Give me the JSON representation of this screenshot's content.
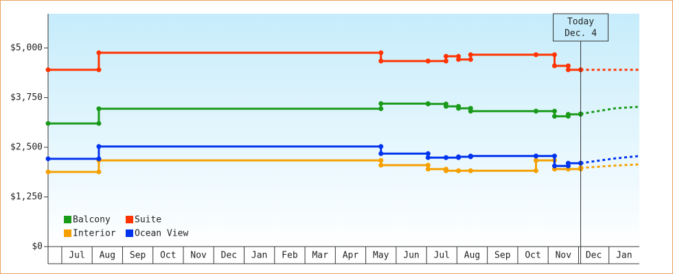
{
  "chart_data": {
    "type": "step-line",
    "ylim": [
      0,
      5862
    ],
    "yticks": [
      {
        "value": 0,
        "label": "$0"
      },
      {
        "value": 1250,
        "label": "$1,250"
      },
      {
        "value": 2500,
        "label": "$2,500"
      },
      {
        "value": 3750,
        "label": "$3,750"
      },
      {
        "value": 5000,
        "label": "$5,000"
      }
    ],
    "xlim": [
      -0.45,
      19
    ],
    "xticks": [
      {
        "value": 0.5,
        "label": "Jul"
      },
      {
        "value": 1.5,
        "label": "Aug"
      },
      {
        "value": 2.5,
        "label": "Sep"
      },
      {
        "value": 3.5,
        "label": "Oct"
      },
      {
        "value": 4.5,
        "label": "Nov"
      },
      {
        "value": 5.5,
        "label": "Dec"
      },
      {
        "value": 6.5,
        "label": "Jan"
      },
      {
        "value": 7.5,
        "label": "Feb"
      },
      {
        "value": 8.5,
        "label": "Mar"
      },
      {
        "value": 9.5,
        "label": "Apr"
      },
      {
        "value": 10.5,
        "label": "May"
      },
      {
        "value": 11.5,
        "label": "Jun"
      },
      {
        "value": 12.5,
        "label": "Jul"
      },
      {
        "value": 13.5,
        "label": "Aug"
      },
      {
        "value": 14.5,
        "label": "Sep"
      },
      {
        "value": 15.5,
        "label": "Oct"
      },
      {
        "value": 16.5,
        "label": "Nov"
      },
      {
        "value": 17.5,
        "label": "Dec"
      },
      {
        "value": 18.5,
        "label": "Jan"
      }
    ],
    "annotation": {
      "lines": [
        "Today",
        "Dec. 4"
      ],
      "x": 17.07
    },
    "series": [
      {
        "name": "Balcony",
        "color": "#1a9a1a",
        "x": [
          -0.45,
          1.22,
          10.5,
          12.05,
          12.64,
          13.05,
          13.45,
          15.6,
          16.21,
          16.66,
          17.07
        ],
        "values": [
          3100,
          3470,
          3600,
          3590,
          3530,
          3480,
          3410,
          3410,
          3280,
          3330,
          3340
        ],
        "forecast_x": [
          17.07,
          18.2,
          19
        ],
        "forecast_values": [
          3340,
          3480,
          3520
        ]
      },
      {
        "name": "Suite",
        "color": "#ff3300",
        "x": [
          -0.45,
          1.22,
          10.5,
          12.05,
          12.64,
          13.05,
          13.45,
          15.6,
          16.21,
          16.66,
          17.07
        ],
        "values": [
          4450,
          4880,
          4670,
          4670,
          4790,
          4710,
          4830,
          4830,
          4550,
          4450,
          4450
        ],
        "forecast_x": [
          17.07,
          19
        ],
        "forecast_values": [
          4450,
          4450
        ]
      },
      {
        "name": "Interior",
        "color": "#f5a000",
        "x": [
          -0.45,
          1.22,
          10.5,
          12.05,
          12.64,
          13.05,
          13.45,
          15.6,
          16.21,
          16.66,
          17.07
        ],
        "values": [
          1880,
          2170,
          2050,
          1950,
          1910,
          1910,
          1910,
          2170,
          1950,
          1950,
          1980
        ],
        "forecast_x": [
          17.07,
          18.2,
          19
        ],
        "forecast_values": [
          1980,
          2040,
          2070
        ]
      },
      {
        "name": "Ocean View",
        "color": "#0033ee",
        "x": [
          -0.45,
          1.22,
          10.5,
          12.05,
          12.64,
          13.05,
          13.45,
          15.6,
          16.21,
          16.66,
          17.07
        ],
        "values": [
          2210,
          2520,
          2340,
          2240,
          2240,
          2260,
          2280,
          2280,
          2030,
          2100,
          2100
        ],
        "forecast_x": [
          17.07,
          18.2,
          19
        ],
        "forecast_values": [
          2100,
          2220,
          2280
        ]
      }
    ]
  }
}
